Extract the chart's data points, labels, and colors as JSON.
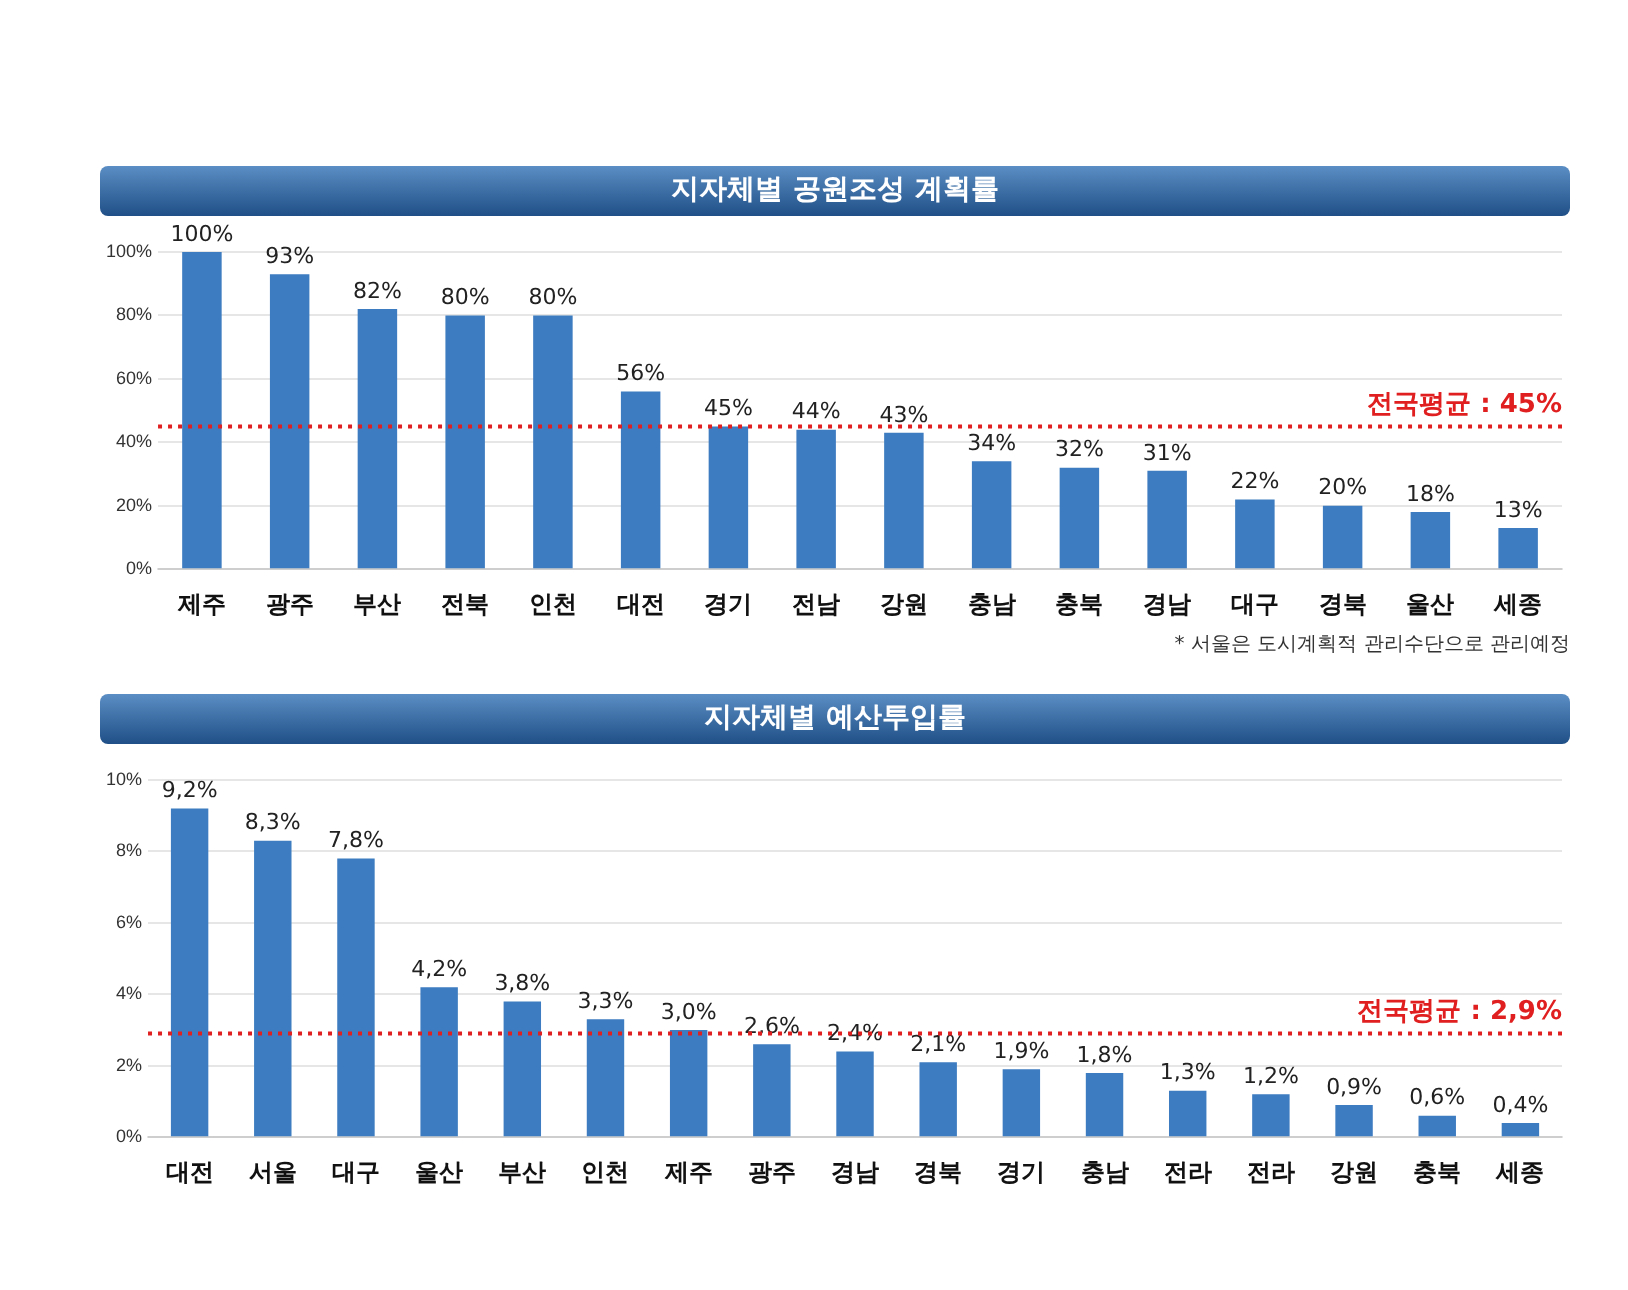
{
  "chart_data": [
    {
      "type": "bar",
      "title": "지자체별 공원조성 계획률",
      "categories": [
        "제주",
        "광주",
        "부산",
        "전북",
        "인천",
        "대전",
        "경기",
        "전남",
        "강원",
        "충남",
        "충북",
        "경남",
        "대구",
        "경북",
        "울산",
        "세종"
      ],
      "values": [
        100,
        93,
        82,
        80,
        80,
        56,
        45,
        44,
        43,
        34,
        32,
        31,
        22,
        20,
        18,
        13
      ],
      "color": "#3d7cc0",
      "value_labels": [
        "100%",
        "93%",
        "82%",
        "80%",
        "80%",
        "56%",
        "45%",
        "44%",
        "43%",
        "34%",
        "32%",
        "31%",
        "22%",
        "20%",
        "18%",
        "13%"
      ],
      "ylim": [
        0,
        100
      ],
      "yticks": [
        {
          "value": 0,
          "label": "0%"
        },
        {
          "value": 20,
          "label": "20%"
        },
        {
          "value": 40,
          "label": "40%"
        },
        {
          "value": 60,
          "label": "60%"
        },
        {
          "value": 80,
          "label": "80%"
        },
        {
          "value": 100,
          "label": "100%"
        }
      ],
      "grid": "y",
      "legend": false,
      "ref_lines": [
        {
          "axis": "y",
          "value": 45,
          "label": "전국평균 : 45%",
          "color": "#e02020",
          "line_style": "dotted"
        }
      ],
      "annotations": [
        "* 서울은 도시계획적 관리수단으로 관리예정"
      ]
    },
    {
      "type": "bar",
      "title": "지자체별 예산투입률",
      "categories": [
        "대전",
        "서울",
        "대구",
        "울산",
        "부산",
        "인천",
        "제주",
        "광주",
        "경남",
        "경북",
        "경기",
        "충남",
        "전라",
        "전라",
        "강원",
        "충북",
        "세종"
      ],
      "values": [
        9.2,
        8.3,
        7.8,
        4.2,
        3.8,
        3.3,
        3.0,
        2.6,
        2.4,
        2.1,
        1.9,
        1.8,
        1.3,
        1.2,
        0.9,
        0.6,
        0.4
      ],
      "color": "#3d7cc0",
      "value_labels": [
        "9,2%",
        "8,3%",
        "7,8%",
        "4,2%",
        "3,8%",
        "3,3%",
        "3,0%",
        "2,6%",
        "2,4%",
        "2,1%",
        "1,9%",
        "1,8%",
        "1,3%",
        "1,2%",
        "0,9%",
        "0,6%",
        "0,4%"
      ],
      "ylim": [
        0,
        10
      ],
      "yticks": [
        {
          "value": 0,
          "label": "0%"
        },
        {
          "value": 2,
          "label": "2%"
        },
        {
          "value": 4,
          "label": "4%"
        },
        {
          "value": 6,
          "label": "6%"
        },
        {
          "value": 8,
          "label": "8%"
        },
        {
          "value": 10,
          "label": "10%"
        }
      ],
      "grid": "y",
      "legend": false,
      "ref_lines": [
        {
          "axis": "y",
          "value": 2.9,
          "label": "전국평균 : 2,9%",
          "color": "#e02020",
          "line_style": "dotted"
        }
      ]
    }
  ]
}
